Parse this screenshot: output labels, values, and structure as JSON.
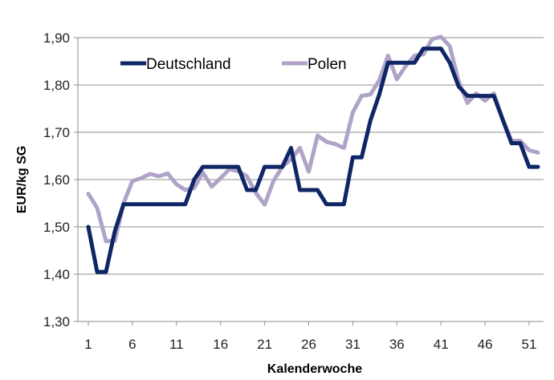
{
  "chart_data": {
    "type": "line",
    "title": "",
    "xlabel": "Kalenderwoche",
    "ylabel": "EUR/kg SG",
    "ylim": [
      1.3,
      1.9
    ],
    "xlim": [
      1,
      52
    ],
    "y_ticks": [
      "1,30",
      "1,40",
      "1,50",
      "1,60",
      "1,70",
      "1,80",
      "1,90"
    ],
    "x_ticks": [
      "1",
      "6",
      "11",
      "16",
      "21",
      "26",
      "31",
      "36",
      "41",
      "46",
      "51"
    ],
    "grid": "horizontal",
    "legend_position": "top-left",
    "x": [
      1,
      2,
      3,
      4,
      5,
      6,
      7,
      8,
      9,
      10,
      11,
      12,
      13,
      14,
      15,
      16,
      17,
      18,
      19,
      20,
      21,
      22,
      23,
      24,
      25,
      26,
      27,
      28,
      29,
      30,
      31,
      32,
      33,
      34,
      35,
      36,
      37,
      38,
      39,
      40,
      41,
      42,
      43,
      44,
      45,
      46,
      47,
      48,
      49,
      50,
      51,
      52
    ],
    "series": [
      {
        "name": "Deutschland",
        "color": "#0f2666",
        "values": [
          1.5,
          1.405,
          1.405,
          1.49,
          1.548,
          1.548,
          1.548,
          1.548,
          1.548,
          1.548,
          1.548,
          1.548,
          1.6,
          1.627,
          1.627,
          1.627,
          1.627,
          1.627,
          1.578,
          1.578,
          1.627,
          1.627,
          1.627,
          1.667,
          1.578,
          1.578,
          1.578,
          1.548,
          1.548,
          1.548,
          1.647,
          1.647,
          1.725,
          1.78,
          1.847,
          1.847,
          1.847,
          1.847,
          1.877,
          1.877,
          1.877,
          1.847,
          1.797,
          1.777,
          1.777,
          1.777,
          1.777,
          1.727,
          1.677,
          1.677,
          1.627,
          1.627
        ]
      },
      {
        "name": "Polen",
        "color": "#b0a3c8",
        "values": [
          1.57,
          1.54,
          1.47,
          1.47,
          1.55,
          1.597,
          1.603,
          1.612,
          1.607,
          1.613,
          1.59,
          1.578,
          1.582,
          1.615,
          1.585,
          1.603,
          1.622,
          1.618,
          1.607,
          1.572,
          1.547,
          1.597,
          1.627,
          1.643,
          1.667,
          1.617,
          1.693,
          1.68,
          1.675,
          1.667,
          1.742,
          1.777,
          1.78,
          1.81,
          1.862,
          1.812,
          1.84,
          1.862,
          1.865,
          1.897,
          1.902,
          1.882,
          1.808,
          1.762,
          1.782,
          1.767,
          1.782,
          1.727,
          1.682,
          1.682,
          1.662,
          1.657
        ]
      }
    ]
  }
}
